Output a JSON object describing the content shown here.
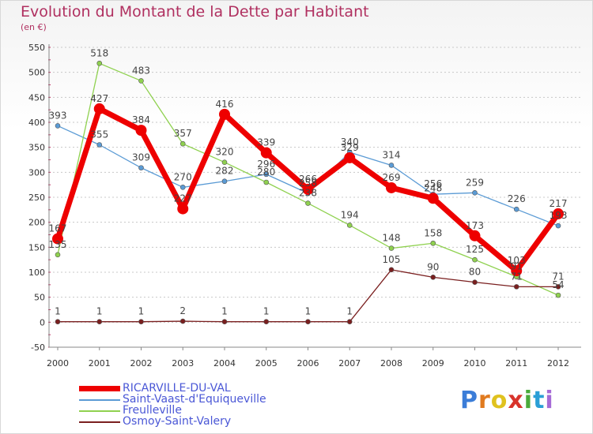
{
  "chart_data": {
    "type": "line",
    "title": "Evolution du Montant de la Dette par Habitant",
    "subtitle": "(en €)",
    "x": [
      "2000",
      "2001",
      "2002",
      "2003",
      "2004",
      "2005",
      "2006",
      "2007",
      "2008",
      "2009",
      "2010",
      "2011",
      "2012"
    ],
    "y_ticks": [
      "-50",
      "0",
      "50",
      "100",
      "150",
      "200",
      "250",
      "300",
      "350",
      "400",
      "450",
      "500",
      "550"
    ],
    "ylim": [
      -50,
      550
    ],
    "grid": "horizontal dashed",
    "legend_position": "bottom-left",
    "series": [
      {
        "name": "RICARVILLE-DU-VAL",
        "color": "#ee0000",
        "emphasis": true,
        "values": [
          167,
          427,
          384,
          227,
          416,
          339,
          266,
          329,
          269,
          248,
          173,
          103,
          217
        ],
        "labels": [
          "167",
          "427",
          "384",
          "227",
          "416",
          "339",
          "266",
          "329",
          "269",
          "248",
          "173",
          "103",
          "217"
        ]
      },
      {
        "name": "Saint-Vaast-d'Equiqueville",
        "color": "#5b9bd5",
        "emphasis": false,
        "values": [
          393,
          355,
          309,
          270,
          282,
          296,
          258,
          340,
          314,
          256,
          259,
          226,
          193
        ],
        "labels": [
          "393",
          "355",
          "309",
          "270",
          "282",
          "296",
          "258",
          "340",
          "314",
          "256",
          "259",
          "226",
          "193"
        ]
      },
      {
        "name": "Freulleville",
        "color": "#8fd14f",
        "emphasis": false,
        "values": [
          135,
          518,
          483,
          357,
          320,
          280,
          238,
          194,
          148,
          158,
          125,
          91,
          54
        ],
        "labels": [
          "135",
          "518",
          "483",
          "357",
          "320",
          "280",
          "238",
          "194",
          "148",
          "158",
          "125",
          "91",
          "54"
        ]
      },
      {
        "name": "Osmoy-Saint-Valery",
        "color": "#7a1f1f",
        "emphasis": false,
        "values": [
          1,
          1,
          1,
          2,
          1,
          1,
          1,
          1,
          105,
          90,
          80,
          71,
          71
        ],
        "labels": [
          "1",
          "1",
          "1",
          "2",
          "1",
          "1",
          "1",
          "1",
          "105",
          "90",
          "80",
          "71",
          "71"
        ]
      }
    ]
  },
  "brand": {
    "letters": [
      "P",
      "r",
      "o",
      "x",
      "i",
      "t",
      "i"
    ],
    "colors": [
      "#3b7dd8",
      "#e07a1f",
      "#e0c21f",
      "#d8332b",
      "#4aaa3a",
      "#2a9fd6",
      "#a66bd6"
    ]
  }
}
